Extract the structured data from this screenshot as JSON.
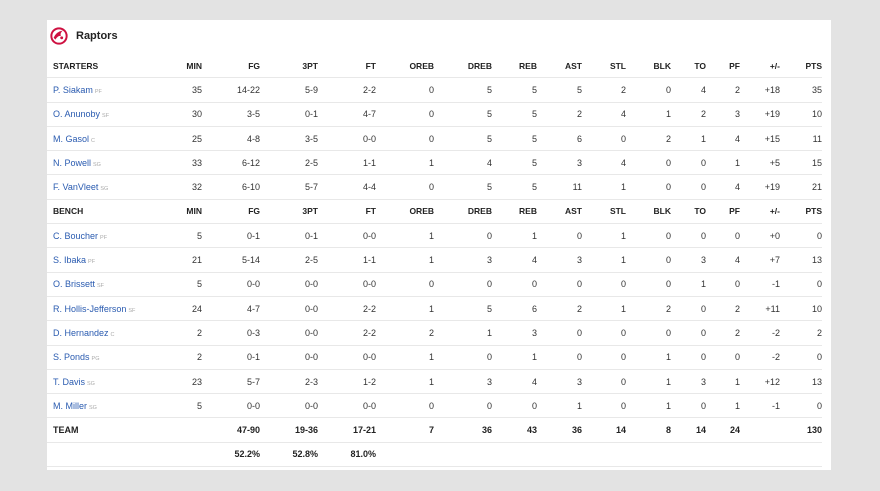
{
  "team": {
    "name": "Raptors"
  },
  "columns": [
    "MIN",
    "FG",
    "3PT",
    "FT",
    "OREB",
    "DREB",
    "REB",
    "AST",
    "STL",
    "BLK",
    "TO",
    "PF",
    "+/-",
    "PTS"
  ],
  "starters": {
    "label": "STARTERS",
    "players": [
      {
        "name": "P. Siakam",
        "pos": "PF",
        "stats": [
          "35",
          "14-22",
          "5-9",
          "2-2",
          "0",
          "5",
          "5",
          "5",
          "2",
          "0",
          "4",
          "2",
          "+18",
          "35"
        ]
      },
      {
        "name": "O. Anunoby",
        "pos": "SF",
        "stats": [
          "30",
          "3-5",
          "0-1",
          "4-7",
          "0",
          "5",
          "5",
          "2",
          "4",
          "1",
          "2",
          "3",
          "+19",
          "10"
        ]
      },
      {
        "name": "M. Gasol",
        "pos": "C",
        "stats": [
          "25",
          "4-8",
          "3-5",
          "0-0",
          "0",
          "5",
          "5",
          "6",
          "0",
          "2",
          "1",
          "4",
          "+15",
          "11"
        ]
      },
      {
        "name": "N. Powell",
        "pos": "SG",
        "stats": [
          "33",
          "6-12",
          "2-5",
          "1-1",
          "1",
          "4",
          "5",
          "3",
          "4",
          "0",
          "0",
          "1",
          "+5",
          "15"
        ]
      },
      {
        "name": "F. VanVleet",
        "pos": "SG",
        "stats": [
          "32",
          "6-10",
          "5-7",
          "4-4",
          "0",
          "5",
          "5",
          "11",
          "1",
          "0",
          "0",
          "4",
          "+19",
          "21"
        ]
      }
    ]
  },
  "bench": {
    "label": "BENCH",
    "players": [
      {
        "name": "C. Boucher",
        "pos": "PF",
        "stats": [
          "5",
          "0-1",
          "0-1",
          "0-0",
          "1",
          "0",
          "1",
          "0",
          "1",
          "0",
          "0",
          "0",
          "+0",
          "0"
        ]
      },
      {
        "name": "S. Ibaka",
        "pos": "PF",
        "stats": [
          "21",
          "5-14",
          "2-5",
          "1-1",
          "1",
          "3",
          "4",
          "3",
          "1",
          "0",
          "3",
          "4",
          "+7",
          "13"
        ]
      },
      {
        "name": "O. Brissett",
        "pos": "SF",
        "stats": [
          "5",
          "0-0",
          "0-0",
          "0-0",
          "0",
          "0",
          "0",
          "0",
          "0",
          "0",
          "1",
          "0",
          "-1",
          "0"
        ]
      },
      {
        "name": "R. Hollis-Jefferson",
        "pos": "SF",
        "stats": [
          "24",
          "4-7",
          "0-0",
          "2-2",
          "1",
          "5",
          "6",
          "2",
          "1",
          "2",
          "0",
          "2",
          "+11",
          "10"
        ]
      },
      {
        "name": "D. Hernandez",
        "pos": "C",
        "stats": [
          "2",
          "0-3",
          "0-0",
          "2-2",
          "2",
          "1",
          "3",
          "0",
          "0",
          "0",
          "0",
          "2",
          "-2",
          "2"
        ]
      },
      {
        "name": "S. Ponds",
        "pos": "PG",
        "stats": [
          "2",
          "0-1",
          "0-0",
          "0-0",
          "1",
          "0",
          "1",
          "0",
          "0",
          "1",
          "0",
          "0",
          "-2",
          "0"
        ]
      },
      {
        "name": "T. Davis",
        "pos": "SG",
        "stats": [
          "23",
          "5-7",
          "2-3",
          "1-2",
          "1",
          "3",
          "4",
          "3",
          "0",
          "1",
          "3",
          "1",
          "+12",
          "13"
        ]
      },
      {
        "name": "M. Miller",
        "pos": "SG",
        "stats": [
          "5",
          "0-0",
          "0-0",
          "0-0",
          "0",
          "0",
          "0",
          "1",
          "0",
          "1",
          "0",
          "1",
          "-1",
          "0"
        ]
      }
    ]
  },
  "totals": {
    "label": "TEAM",
    "stats": [
      "",
      "47-90",
      "19-36",
      "17-21",
      "7",
      "36",
      "43",
      "36",
      "14",
      "8",
      "14",
      "24",
      "",
      "130"
    ],
    "percentages": [
      "",
      "52.2%",
      "52.8%",
      "81.0%",
      "",
      "",
      "",
      "",
      "",
      "",
      "",
      "",
      "",
      ""
    ]
  },
  "colors": {
    "logo": "#ce1141",
    "player_link": "#2a5bb0"
  },
  "icons": {
    "logo": "raptors-logo-icon"
  }
}
